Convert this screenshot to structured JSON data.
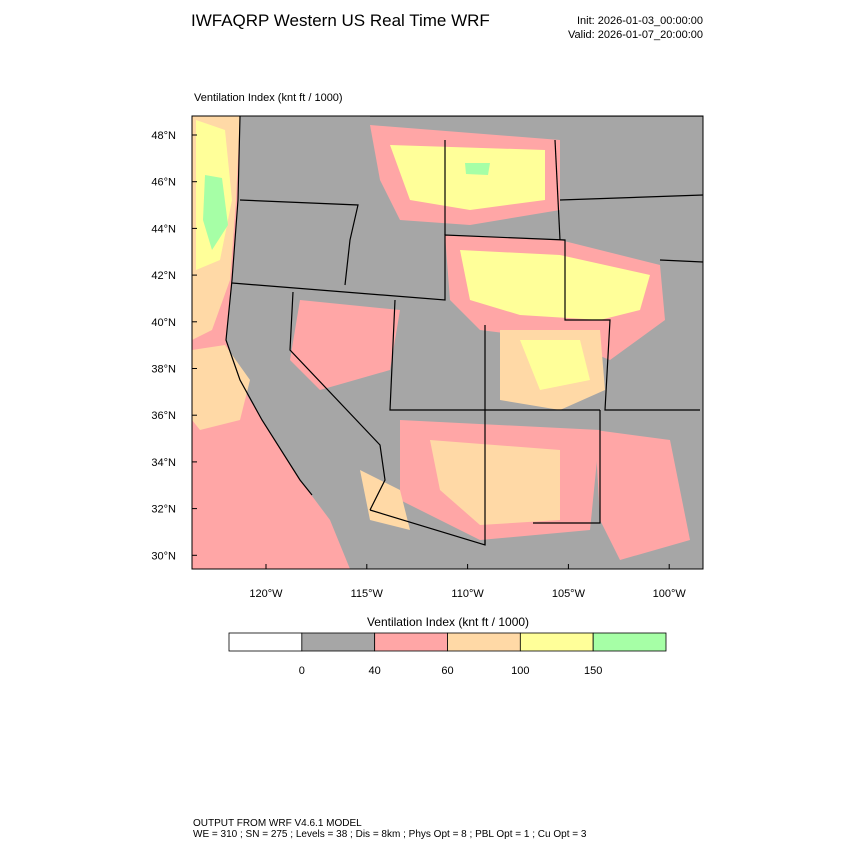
{
  "header": {
    "title": "IWFAQRP Western US Real Time WRF",
    "init": "Init: 2026-01-03_00:00:00",
    "valid": "Valid: 2026-01-07_20:00:00"
  },
  "map": {
    "title": "Ventilation Index   (knt ft / 1000)",
    "lat_labels": [
      "48°N",
      "46°N",
      "44°N",
      "42°N",
      "40°N",
      "38°N",
      "36°N",
      "34°N",
      "32°N",
      "30°N"
    ],
    "lon_labels": [
      "120°W",
      "115°W",
      "110°W",
      "105°W",
      "100°W"
    ]
  },
  "colorbar": {
    "title": "Ventilation Index   (knt ft / 1000)",
    "colors": [
      "#ffffff",
      "#a6a6a6",
      "#ffa6a6",
      "#ffd9a6",
      "#ffff99",
      "#a6ffa6"
    ],
    "labels": [
      "0",
      "40",
      "60",
      "100",
      "150"
    ]
  },
  "footer": {
    "line1": "OUTPUT FROM WRF V4.6.1 MODEL",
    "line2": "WE = 310 ; SN = 275 ; Levels = 38 ; Dis = 8km ; Phys Opt = 8 ; PBL Opt = 1 ; Cu Opt = 3"
  }
}
